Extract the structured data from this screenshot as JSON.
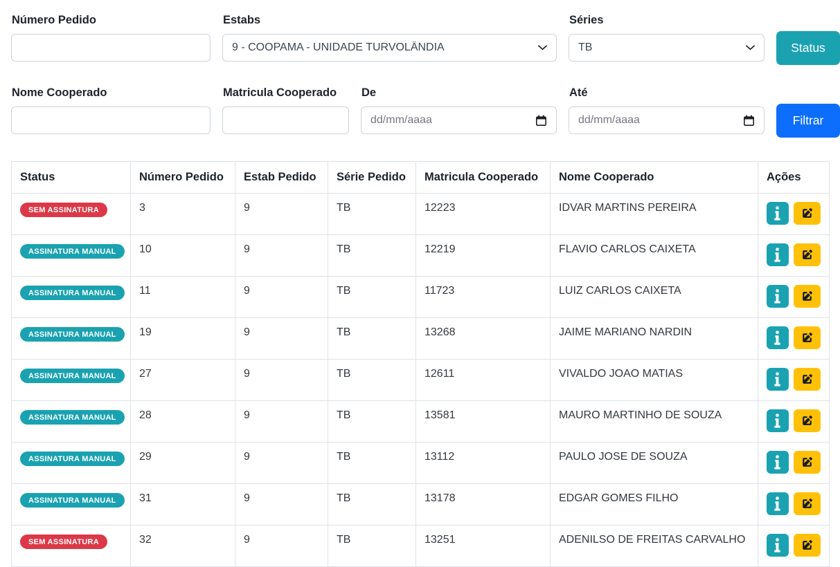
{
  "colors": {
    "teal": "#1aa2b1",
    "red": "#dc3848",
    "blue": "#0d6efd",
    "yellow": "#ffc107"
  },
  "filters": {
    "numero_pedido": {
      "label": "Número Pedido",
      "value": ""
    },
    "estabs": {
      "label": "Estabs",
      "value": "9 - COOPAMA - UNIDADE TURVOLÂNDIA"
    },
    "series": {
      "label": "Séries",
      "value": "TB"
    },
    "status_button_label": "Status",
    "nome_cooperado": {
      "label": "Nome Cooperado",
      "value": ""
    },
    "matricula_cooperado": {
      "label": "Matricula Cooperado",
      "value": ""
    },
    "de": {
      "label": "De",
      "placeholder": "dd/mm/aaaa"
    },
    "ate": {
      "label": "Até",
      "placeholder": "dd/mm/aaaa"
    },
    "filtrar_button_label": "Filtrar"
  },
  "icons": {
    "select_chevron": "chevron-down",
    "date_picker": "calendar",
    "info_action": "info",
    "edit_action": "pen-to-square"
  },
  "table": {
    "headers": [
      "Status",
      "Número Pedido",
      "Estab Pedido",
      "Série Pedido",
      "Matricula Cooperado",
      "Nome Cooperado",
      "Ações"
    ],
    "rows": [
      {
        "status": "SEM ASSINATURA",
        "status_type": "danger",
        "numero_pedido": "3",
        "estab_pedido": "9",
        "serie_pedido": "TB",
        "matricula": "12223",
        "nome": "IDVAR MARTINS PEREIRA"
      },
      {
        "status": "ASSINATURA MANUAL",
        "status_type": "info",
        "numero_pedido": "10",
        "estab_pedido": "9",
        "serie_pedido": "TB",
        "matricula": "12219",
        "nome": "FLAVIO CARLOS CAIXETA"
      },
      {
        "status": "ASSINATURA MANUAL",
        "status_type": "info",
        "numero_pedido": "11",
        "estab_pedido": "9",
        "serie_pedido": "TB",
        "matricula": "11723",
        "nome": "LUIZ CARLOS CAIXETA"
      },
      {
        "status": "ASSINATURA MANUAL",
        "status_type": "info",
        "numero_pedido": "19",
        "estab_pedido": "9",
        "serie_pedido": "TB",
        "matricula": "13268",
        "nome": "JAIME MARIANO NARDIN"
      },
      {
        "status": "ASSINATURA MANUAL",
        "status_type": "info",
        "numero_pedido": "27",
        "estab_pedido": "9",
        "serie_pedido": "TB",
        "matricula": "12611",
        "nome": "VIVALDO JOAO MATIAS"
      },
      {
        "status": "ASSINATURA MANUAL",
        "status_type": "info",
        "numero_pedido": "28",
        "estab_pedido": "9",
        "serie_pedido": "TB",
        "matricula": "13581",
        "nome": "MAURO MARTINHO DE SOUZA"
      },
      {
        "status": "ASSINATURA MANUAL",
        "status_type": "info",
        "numero_pedido": "29",
        "estab_pedido": "9",
        "serie_pedido": "TB",
        "matricula": "13112",
        "nome": "PAULO JOSE DE SOUZA"
      },
      {
        "status": "ASSINATURA MANUAL",
        "status_type": "info",
        "numero_pedido": "31",
        "estab_pedido": "9",
        "serie_pedido": "TB",
        "matricula": "13178",
        "nome": "EDGAR GOMES FILHO"
      },
      {
        "status": "SEM ASSINATURA",
        "status_type": "danger",
        "numero_pedido": "32",
        "estab_pedido": "9",
        "serie_pedido": "TB",
        "matricula": "13251",
        "nome": "ADENILSO DE FREITAS CARVALHO"
      }
    ]
  }
}
